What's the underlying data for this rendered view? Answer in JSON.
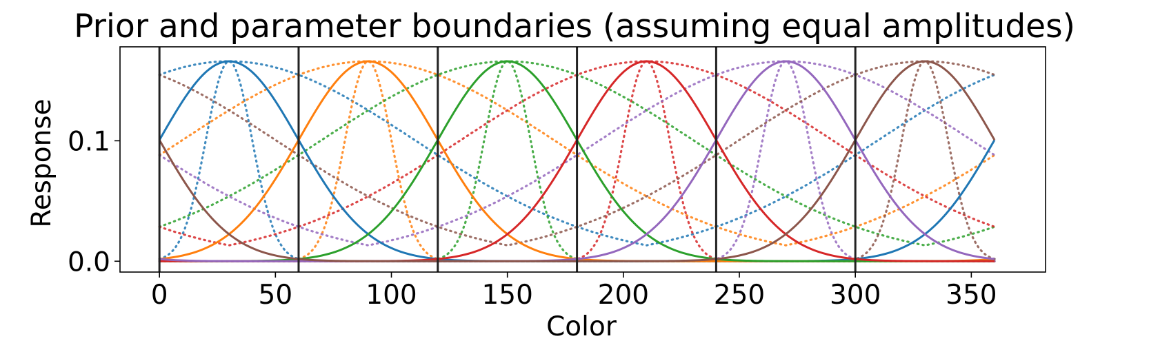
{
  "chart_data": {
    "type": "line",
    "title": "Prior and parameter boundaries (assuming equal amplitudes)",
    "xlabel": "Color",
    "ylabel": "Response",
    "xlim": [
      -17,
      382
    ],
    "ylim": [
      -0.009,
      0.178
    ],
    "x_ticks": [
      0,
      50,
      100,
      150,
      200,
      250,
      300,
      350
    ],
    "y_ticks": [
      0.0,
      0.1
    ],
    "y_tick_labels": [
      "0.0",
      "0.1"
    ],
    "x_domain": [
      0,
      360
    ],
    "peak_response": 0.166,
    "solid_std": 30,
    "dotted_stds": [
      10,
      80
    ],
    "boundaries": [
      0,
      60,
      120,
      180,
      240,
      300
    ],
    "boundary_color": "#222222",
    "grid": false,
    "legend": "none",
    "series": [
      {
        "center": 30,
        "color": "#1f77b4"
      },
      {
        "center": 90,
        "color": "#ff7f0e"
      },
      {
        "center": 150,
        "color": "#2ca02c"
      },
      {
        "center": 210,
        "color": "#d62728"
      },
      {
        "center": 270,
        "color": "#9467bd"
      },
      {
        "center": 330,
        "color": "#8c564b"
      }
    ]
  }
}
